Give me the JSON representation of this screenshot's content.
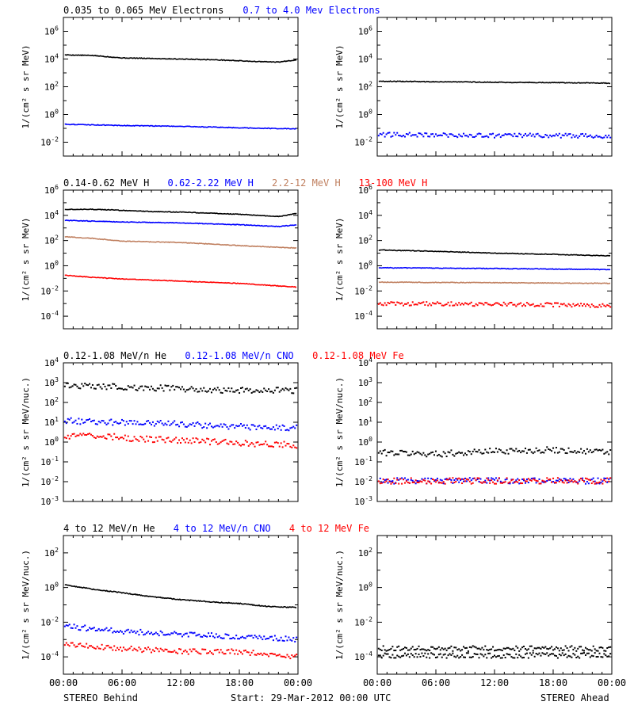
{
  "colors": {
    "black": "#000000",
    "blue": "#0000ff",
    "tan": "#c08060",
    "red": "#ff0000"
  },
  "footer": {
    "left": "STEREO Behind",
    "center": "Start: 29-Mar-2012 00:00 UTC",
    "right": "STEREO Ahead"
  },
  "chart_data": [
    {
      "type": "scatter",
      "panel": "row1-left",
      "ylabel": "1/(cm² s sr MeV)",
      "y_scale": "log",
      "ylim": [
        0.001,
        10000000
      ],
      "yticks": [
        0.01,
        1,
        100,
        10000,
        1000000
      ],
      "xlim": [
        "00:00",
        "24:00"
      ],
      "xtick_labels": [],
      "legend_entries": [
        {
          "label": "0.035 to 0.065 MeV Electrons",
          "color": "#000000"
        },
        {
          "label": "0.7 to 4.0 Mev Electrons",
          "color": "#0000ff"
        }
      ],
      "series": [
        {
          "name": "0.035 to 0.065 MeV Electrons",
          "color": "#000000",
          "x_hours": [
            0,
            3,
            6,
            9,
            12,
            15,
            18,
            20,
            22,
            24
          ],
          "y": [
            20000,
            18000,
            12000,
            11000,
            10000,
            9000,
            7500,
            6500,
            6000,
            9000
          ]
        },
        {
          "name": "0.7 to 4.0 Mev Electrons",
          "color": "#0000ff",
          "x_hours": [
            0,
            6,
            12,
            18,
            24
          ],
          "y": [
            0.2,
            0.16,
            0.14,
            0.11,
            0.09
          ]
        }
      ]
    },
    {
      "type": "scatter",
      "panel": "row1-right",
      "ylabel": "1/(cm² s sr MeV)",
      "y_scale": "log",
      "ylim": [
        0.001,
        10000000
      ],
      "yticks": [
        0.01,
        1,
        100,
        10000,
        1000000
      ],
      "xlim": [
        "00:00",
        "24:00"
      ],
      "xtick_labels": [],
      "legend_entries": [],
      "series": [
        {
          "color": "#000000",
          "x_hours": [
            0,
            6,
            12,
            18,
            24
          ],
          "y": [
            250,
            230,
            210,
            200,
            180
          ]
        },
        {
          "color": "#0000ff",
          "x_hours": [
            0,
            6,
            12,
            18,
            24
          ],
          "y": [
            0.035,
            0.033,
            0.03,
            0.03,
            0.028
          ],
          "scatter": true
        }
      ]
    },
    {
      "type": "scatter",
      "panel": "row2-left",
      "ylabel": "1/(cm² s sr MeV)",
      "y_scale": "log",
      "ylim": [
        1e-05,
        1000000
      ],
      "yticks": [
        0.0001,
        0.01,
        1,
        100,
        10000,
        1000000
      ],
      "xlim": [
        "00:00",
        "24:00"
      ],
      "xtick_labels": [],
      "legend_entries": [
        {
          "label": "0.14-0.62 MeV H",
          "color": "#000000"
        },
        {
          "label": "0.62-2.22 MeV H",
          "color": "#0000ff"
        },
        {
          "label": "2.2-12 MeV H",
          "color": "#c08060"
        },
        {
          "label": "13-100 MeV H",
          "color": "#ff0000"
        }
      ],
      "series": [
        {
          "name": "0.14-0.62 MeV H",
          "color": "#000000",
          "x_hours": [
            0,
            3,
            6,
            9,
            12,
            15,
            18,
            20,
            22,
            24
          ],
          "y": [
            30000,
            30000,
            25000,
            20000,
            18000,
            15000,
            12000,
            10000,
            8000,
            15000
          ]
        },
        {
          "name": "0.62-2.22 MeV H",
          "color": "#0000ff",
          "x_hours": [
            0,
            6,
            12,
            18,
            22,
            24
          ],
          "y": [
            4000,
            3000,
            2500,
            1800,
            1300,
            1800
          ]
        },
        {
          "name": "2.2-12 MeV H",
          "color": "#c08060",
          "x_hours": [
            0,
            3,
            6,
            12,
            18,
            24
          ],
          "y": [
            200,
            150,
            90,
            70,
            40,
            25
          ]
        },
        {
          "name": "13-100 MeV H",
          "color": "#ff0000",
          "x_hours": [
            0,
            3,
            6,
            12,
            18,
            22,
            24
          ],
          "y": [
            0.18,
            0.12,
            0.09,
            0.06,
            0.04,
            0.025,
            0.02
          ]
        }
      ]
    },
    {
      "type": "scatter",
      "panel": "row2-right",
      "ylabel": "1/(cm² s sr MeV)",
      "y_scale": "log",
      "ylim": [
        1e-05,
        1000000
      ],
      "yticks": [
        0.0001,
        0.01,
        1,
        100,
        10000,
        1000000
      ],
      "xlim": [
        "00:00",
        "24:00"
      ],
      "xtick_labels": [],
      "legend_entries": [],
      "series": [
        {
          "color": "#000000",
          "x_hours": [
            0,
            6,
            12,
            18,
            24
          ],
          "y": [
            18,
            14,
            10,
            8,
            6
          ]
        },
        {
          "color": "#0000ff",
          "x_hours": [
            0,
            12,
            24
          ],
          "y": [
            0.7,
            0.6,
            0.5
          ]
        },
        {
          "color": "#c08060",
          "x_hours": [
            0,
            12,
            24
          ],
          "y": [
            0.05,
            0.045,
            0.04
          ]
        },
        {
          "color": "#ff0000",
          "x_hours": [
            0,
            12,
            24
          ],
          "y": [
            0.001,
            0.0009,
            0.0007
          ],
          "scatter": true
        }
      ]
    },
    {
      "type": "scatter",
      "panel": "row3-left",
      "ylabel": "1/(cm² s sr MeV/nuc.)",
      "y_scale": "log",
      "ylim": [
        0.001,
        10000
      ],
      "yticks": [
        0.001,
        0.01,
        0.1,
        1,
        10,
        100,
        1000,
        10000
      ],
      "xlim": [
        "00:00",
        "24:00"
      ],
      "xtick_labels": [],
      "legend_entries": [
        {
          "label": "0.12-1.08 MeV/n He",
          "color": "#000000"
        },
        {
          "label": "0.12-1.08 MeV/n CNO",
          "color": "#0000ff"
        },
        {
          "label": "0.12-1.08 MeV Fe",
          "color": "#ff0000"
        }
      ],
      "series": [
        {
          "name": "0.12-1.08 MeV/n He",
          "color": "#000000",
          "x_hours": [
            0,
            6,
            12,
            18,
            24
          ],
          "y": [
            700,
            600,
            500,
            400,
            400
          ],
          "scatter": true
        },
        {
          "name": "0.12-1.08 MeV/n CNO",
          "color": "#0000ff",
          "x_hours": [
            0,
            6,
            12,
            18,
            24
          ],
          "y": [
            12,
            10,
            8,
            6,
            5
          ],
          "scatter": true
        },
        {
          "name": "0.12-1.08 MeV Fe",
          "color": "#ff0000",
          "x_hours": [
            0,
            4,
            6,
            12,
            18,
            24
          ],
          "y": [
            1.8,
            2.2,
            1.6,
            1.2,
            0.9,
            0.7
          ],
          "scatter": true
        }
      ]
    },
    {
      "type": "scatter",
      "panel": "row3-right",
      "ylabel": "1/(cm² s sr MeV/nuc.)",
      "y_scale": "log",
      "ylim": [
        0.001,
        10000
      ],
      "yticks": [
        0.001,
        0.01,
        0.1,
        1,
        10,
        100,
        1000,
        10000
      ],
      "xlim": [
        "00:00",
        "24:00"
      ],
      "xtick_labels": [],
      "legend_entries": [],
      "series": [
        {
          "color": "#000000",
          "x_hours": [
            0,
            6,
            12,
            18,
            24
          ],
          "y": [
            0.3,
            0.25,
            0.35,
            0.4,
            0.3
          ],
          "scatter": true
        },
        {
          "color": "#0000ff",
          "x_hours": [
            0,
            12,
            24
          ],
          "y": [
            0.011,
            0.011,
            0.011
          ],
          "scatter": true
        },
        {
          "color": "#ff0000",
          "x_hours": [
            0,
            12,
            24
          ],
          "y": [
            0.011,
            0.011,
            0.011
          ],
          "scatter": true
        }
      ]
    },
    {
      "type": "scatter",
      "panel": "row4-left",
      "ylabel": "1/(cm² s sr MeV/nuc.)",
      "y_scale": "log",
      "ylim": [
        1e-05,
        1000
      ],
      "yticks": [
        0.0001,
        0.01,
        1,
        100
      ],
      "xlim": [
        "00:00",
        "24:00"
      ],
      "xtick_labels": [
        "00:00",
        "06:00",
        "12:00",
        "18:00",
        "00:00"
      ],
      "legend_entries": [
        {
          "label": "4 to 12 MeV/n He",
          "color": "#000000"
        },
        {
          "label": "4 to 12 MeV/n CNO",
          "color": "#0000ff"
        },
        {
          "label": "4 to 12 MeV Fe",
          "color": "#ff0000"
        }
      ],
      "series": [
        {
          "name": "4 to 12 MeV/n He",
          "color": "#000000",
          "x_hours": [
            0,
            3,
            6,
            9,
            12,
            15,
            18,
            21,
            24
          ],
          "y": [
            1.5,
            0.8,
            0.5,
            0.3,
            0.2,
            0.15,
            0.12,
            0.08,
            0.07
          ]
        },
        {
          "name": "4 to 12 MeV/n CNO",
          "color": "#0000ff",
          "x_hours": [
            0,
            6,
            12,
            18,
            24
          ],
          "y": [
            0.006,
            0.003,
            0.002,
            0.0015,
            0.001
          ],
          "scatter": true
        },
        {
          "name": "4 to 12 MeV Fe",
          "color": "#ff0000",
          "x_hours": [
            0,
            6,
            12,
            18,
            24
          ],
          "y": [
            0.0005,
            0.0003,
            0.0002,
            0.0002,
            0.0001
          ],
          "scatter": true
        }
      ]
    },
    {
      "type": "scatter",
      "panel": "row4-right",
      "ylabel": "1/(cm² s sr MeV/nuc.)",
      "y_scale": "log",
      "ylim": [
        1e-05,
        1000
      ],
      "yticks": [
        0.0001,
        0.01,
        1,
        100
      ],
      "xlim": [
        "00:00",
        "24:00"
      ],
      "xtick_labels": [
        "00:00",
        "06:00",
        "12:00",
        "18:00",
        "00:00"
      ],
      "legend_entries": [],
      "series": [
        {
          "color": "#000000",
          "x_hours": [
            0,
            6,
            12,
            18,
            24
          ],
          "y": [
            0.0003,
            0.0003,
            0.0003,
            0.0003,
            0.0003
          ],
          "scatter": true
        },
        {
          "color": "#000000",
          "x_hours": [
            1,
            12,
            24
          ],
          "y": [
            0.00012,
            0.00012,
            0.00012
          ],
          "scatter": true
        }
      ]
    }
  ]
}
